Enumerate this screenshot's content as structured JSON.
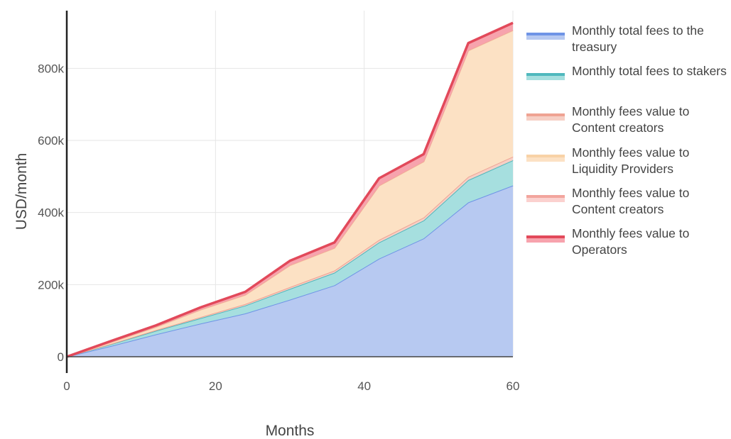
{
  "chart_data": {
    "type": "area",
    "stacked": true,
    "xlabel": "Months",
    "ylabel": "USD/month",
    "xlim": [
      0,
      60
    ],
    "ylim": [
      0,
      960000
    ],
    "x_ticks": [
      0,
      20,
      40,
      60
    ],
    "y_ticks": [
      0,
      200000,
      400000,
      600000,
      800000
    ],
    "y_tick_labels": [
      "0",
      "200k",
      "400k",
      "600k",
      "800k"
    ],
    "x_tick_labels": [
      "0",
      "20",
      "40",
      "60"
    ],
    "grid": true,
    "legend_position": "right",
    "x": [
      0,
      6,
      12,
      18,
      24,
      30,
      36,
      42,
      48,
      54,
      60
    ],
    "series": [
      {
        "name": "Monthly total fees to the treasury",
        "color": "#b7c9f1",
        "line_color": "#6f94e6",
        "values": [
          0,
          30000,
          62000,
          92000,
          120000,
          158000,
          198000,
          272000,
          328000,
          428000,
          475000
        ]
      },
      {
        "name": "Monthly total fees to stakers",
        "color": "#a6dfdf",
        "line_color": "#4fb8bd",
        "values": [
          0,
          5000,
          10000,
          15000,
          22000,
          30000,
          35000,
          45000,
          50000,
          62000,
          70000
        ]
      },
      {
        "name": "Monthly fees value to Content creators",
        "color": "#f6cfc5",
        "line_color": "#efa393",
        "values": [
          0,
          1000,
          2000,
          3000,
          4000,
          5000,
          6000,
          7000,
          8000,
          9000,
          10000
        ]
      },
      {
        "name": "Monthly fees value to Liquidity Providers",
        "color": "#fce1c4",
        "line_color": "#f8d2a6",
        "values": [
          0,
          4000,
          8000,
          20000,
          25000,
          60000,
          62000,
          150000,
          155000,
          350000,
          350000
        ]
      },
      {
        "name": "Monthly fees value to Content creators",
        "color": "#fbd1cf",
        "line_color": "#f2a59d",
        "values": [
          0,
          1000,
          1000,
          1000,
          1000,
          1000,
          1000,
          1000,
          1000,
          1000,
          1000
        ]
      },
      {
        "name": "Monthly fees value to Operators",
        "color": "#f7a3ad",
        "line_color": "#e2495a",
        "values": [
          0,
          3000,
          4000,
          6000,
          8000,
          12000,
          15000,
          20000,
          20000,
          20000,
          20000
        ]
      }
    ]
  }
}
